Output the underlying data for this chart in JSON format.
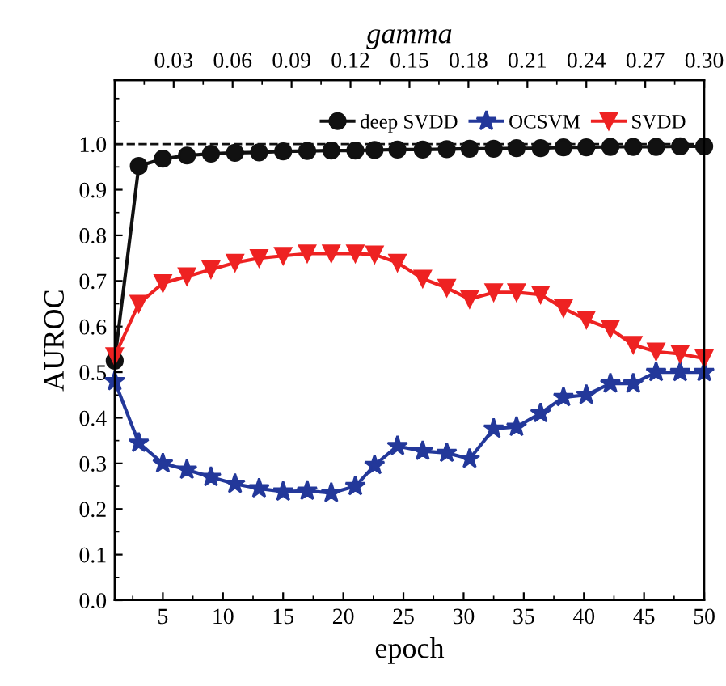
{
  "chart_data": {
    "type": "line",
    "xlabel": "epoch",
    "ylabel": "AUROC",
    "x2label": "gamma",
    "x": [
      1,
      3,
      5,
      7,
      9,
      11,
      13,
      15,
      17,
      19,
      21,
      22.6,
      24.5,
      26.6,
      28.6,
      30.5,
      32.5,
      34.4,
      36.4,
      38.3,
      40.2,
      42.2,
      44.1,
      46,
      48,
      50
    ],
    "series": [
      {
        "name": "deep SVDD",
        "color": "#111111",
        "marker": "circle",
        "values": [
          0.525,
          0.952,
          0.968,
          0.975,
          0.979,
          0.981,
          0.982,
          0.984,
          0.985,
          0.986,
          0.986,
          0.987,
          0.988,
          0.988,
          0.989,
          0.99,
          0.99,
          0.991,
          0.991,
          0.993,
          0.993,
          0.994,
          0.994,
          0.994,
          0.995,
          0.995
        ]
      },
      {
        "name": "OCSVM",
        "color": "#23389a",
        "marker": "star",
        "values": [
          0.48,
          0.345,
          0.3,
          0.286,
          0.27,
          0.255,
          0.245,
          0.238,
          0.24,
          0.235,
          0.25,
          0.296,
          0.338,
          0.327,
          0.323,
          0.31,
          0.376,
          0.38,
          0.41,
          0.445,
          0.45,
          0.475,
          0.475,
          0.5,
          0.5,
          0.5
        ]
      },
      {
        "name": "SVDD",
        "color": "#ee2222",
        "marker": "triangle",
        "values": [
          0.535,
          0.65,
          0.695,
          0.71,
          0.725,
          0.74,
          0.75,
          0.755,
          0.76,
          0.76,
          0.76,
          0.758,
          0.74,
          0.705,
          0.685,
          0.66,
          0.675,
          0.675,
          0.67,
          0.64,
          0.615,
          0.595,
          0.56,
          0.545,
          0.54,
          0.53
        ]
      }
    ],
    "xlim": [
      1,
      50
    ],
    "xticks": [
      5,
      10,
      15,
      20,
      25,
      30,
      35,
      40,
      45,
      50
    ],
    "x2lim": [
      0,
      0.3
    ],
    "x2ticks": [
      {
        "value": 0.03,
        "label": "0.03"
      },
      {
        "value": 0.06,
        "label": "0.06"
      },
      {
        "value": 0.09,
        "label": "0.09"
      },
      {
        "value": 0.12,
        "label": "0.12"
      },
      {
        "value": 0.15,
        "label": "0.15"
      },
      {
        "value": 0.18,
        "label": "0.18"
      },
      {
        "value": 0.21,
        "label": "0.21"
      },
      {
        "value": 0.24,
        "label": "0.24"
      },
      {
        "value": 0.27,
        "label": "0.27"
      },
      {
        "value": 0.3,
        "label": "0.30"
      }
    ],
    "ylim": [
      0,
      1.14
    ],
    "yticks": [
      {
        "value": 0,
        "label": "0.0"
      },
      {
        "value": 0.1,
        "label": "0.1"
      },
      {
        "value": 0.2,
        "label": "0.2"
      },
      {
        "value": 0.3,
        "label": "0.3"
      },
      {
        "value": 0.4,
        "label": "0.4"
      },
      {
        "value": 0.5,
        "label": "0.5"
      },
      {
        "value": 0.6,
        "label": "0.6"
      },
      {
        "value": 0.7,
        "label": "0.7"
      },
      {
        "value": 0.8,
        "label": "0.8"
      },
      {
        "value": 0.9,
        "label": "0.9"
      },
      {
        "value": 1.0,
        "label": "1.0"
      }
    ],
    "ref_lines": [
      {
        "axis": "y",
        "value": 1.0,
        "color": "#111111",
        "line_style": "dashed"
      }
    ],
    "legend": "top right",
    "grid": false,
    "line_style": "solid"
  }
}
